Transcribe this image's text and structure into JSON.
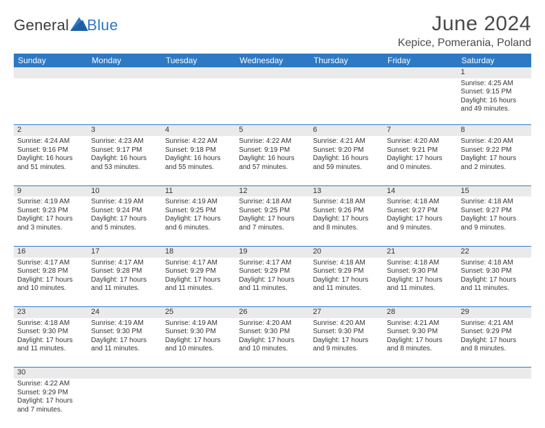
{
  "logo": {
    "word1": "General",
    "word2": "Blue"
  },
  "header": {
    "title": "June 2024",
    "location": "Kepice, Pomerania, Poland"
  },
  "colors": {
    "header_blue": "#2e79c4",
    "daynum_bg": "#eaeaea",
    "text": "#333333",
    "page_bg": "#ffffff"
  },
  "typography": {
    "title_fontsize": 30,
    "location_fontsize": 16,
    "weekday_fontsize": 12,
    "day_number_fontsize": 11,
    "cell_fontsize": 10
  },
  "week_days": [
    "Sunday",
    "Monday",
    "Tuesday",
    "Wednesday",
    "Thursday",
    "Friday",
    "Saturday"
  ],
  "weeks": [
    {
      "nums": [
        "",
        "",
        "",
        "",
        "",
        "",
        "1"
      ],
      "cells": [
        "",
        "",
        "",
        "",
        "",
        "",
        "Sunrise: 4:25 AM\nSunset: 9:15 PM\nDaylight: 16 hours and 49 minutes."
      ]
    },
    {
      "nums": [
        "2",
        "3",
        "4",
        "5",
        "6",
        "7",
        "8"
      ],
      "cells": [
        "Sunrise: 4:24 AM\nSunset: 9:16 PM\nDaylight: 16 hours and 51 minutes.",
        "Sunrise: 4:23 AM\nSunset: 9:17 PM\nDaylight: 16 hours and 53 minutes.",
        "Sunrise: 4:22 AM\nSunset: 9:18 PM\nDaylight: 16 hours and 55 minutes.",
        "Sunrise: 4:22 AM\nSunset: 9:19 PM\nDaylight: 16 hours and 57 minutes.",
        "Sunrise: 4:21 AM\nSunset: 9:20 PM\nDaylight: 16 hours and 59 minutes.",
        "Sunrise: 4:20 AM\nSunset: 9:21 PM\nDaylight: 17 hours and 0 minutes.",
        "Sunrise: 4:20 AM\nSunset: 9:22 PM\nDaylight: 17 hours and 2 minutes."
      ]
    },
    {
      "nums": [
        "9",
        "10",
        "11",
        "12",
        "13",
        "14",
        "15"
      ],
      "cells": [
        "Sunrise: 4:19 AM\nSunset: 9:23 PM\nDaylight: 17 hours and 3 minutes.",
        "Sunrise: 4:19 AM\nSunset: 9:24 PM\nDaylight: 17 hours and 5 minutes.",
        "Sunrise: 4:19 AM\nSunset: 9:25 PM\nDaylight: 17 hours and 6 minutes.",
        "Sunrise: 4:18 AM\nSunset: 9:25 PM\nDaylight: 17 hours and 7 minutes.",
        "Sunrise: 4:18 AM\nSunset: 9:26 PM\nDaylight: 17 hours and 8 minutes.",
        "Sunrise: 4:18 AM\nSunset: 9:27 PM\nDaylight: 17 hours and 9 minutes.",
        "Sunrise: 4:18 AM\nSunset: 9:27 PM\nDaylight: 17 hours and 9 minutes."
      ]
    },
    {
      "nums": [
        "16",
        "17",
        "18",
        "19",
        "20",
        "21",
        "22"
      ],
      "cells": [
        "Sunrise: 4:17 AM\nSunset: 9:28 PM\nDaylight: 17 hours and 10 minutes.",
        "Sunrise: 4:17 AM\nSunset: 9:28 PM\nDaylight: 17 hours and 11 minutes.",
        "Sunrise: 4:17 AM\nSunset: 9:29 PM\nDaylight: 17 hours and 11 minutes.",
        "Sunrise: 4:17 AM\nSunset: 9:29 PM\nDaylight: 17 hours and 11 minutes.",
        "Sunrise: 4:18 AM\nSunset: 9:29 PM\nDaylight: 17 hours and 11 minutes.",
        "Sunrise: 4:18 AM\nSunset: 9:30 PM\nDaylight: 17 hours and 11 minutes.",
        "Sunrise: 4:18 AM\nSunset: 9:30 PM\nDaylight: 17 hours and 11 minutes."
      ]
    },
    {
      "nums": [
        "23",
        "24",
        "25",
        "26",
        "27",
        "28",
        "29"
      ],
      "cells": [
        "Sunrise: 4:18 AM\nSunset: 9:30 PM\nDaylight: 17 hours and 11 minutes.",
        "Sunrise: 4:19 AM\nSunset: 9:30 PM\nDaylight: 17 hours and 11 minutes.",
        "Sunrise: 4:19 AM\nSunset: 9:30 PM\nDaylight: 17 hours and 10 minutes.",
        "Sunrise: 4:20 AM\nSunset: 9:30 PM\nDaylight: 17 hours and 10 minutes.",
        "Sunrise: 4:20 AM\nSunset: 9:30 PM\nDaylight: 17 hours and 9 minutes.",
        "Sunrise: 4:21 AM\nSunset: 9:30 PM\nDaylight: 17 hours and 8 minutes.",
        "Sunrise: 4:21 AM\nSunset: 9:29 PM\nDaylight: 17 hours and 8 minutes."
      ]
    },
    {
      "nums": [
        "30",
        "",
        "",
        "",
        "",
        "",
        ""
      ],
      "cells": [
        "Sunrise: 4:22 AM\nSunset: 9:29 PM\nDaylight: 17 hours and 7 minutes.",
        "",
        "",
        "",
        "",
        "",
        ""
      ]
    }
  ]
}
